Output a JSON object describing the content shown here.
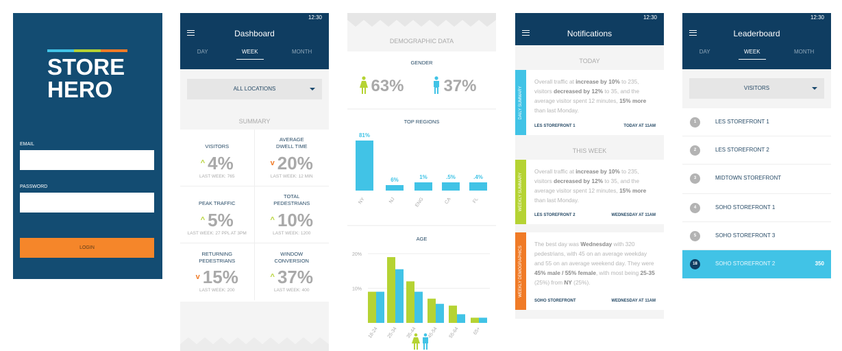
{
  "colors": {
    "navy": "#0f3d61",
    "blue": "#41c3e6",
    "green": "#b5d333",
    "orange": "#f07b27"
  },
  "status_time": "12:30",
  "login": {
    "logo_line1": "STORE",
    "logo_line2": "HERO",
    "email_label": "EMAIL",
    "password_label": "PASSWORD",
    "email_value": "",
    "password_value": "",
    "login_button": "LOGIN"
  },
  "dashboard": {
    "title": "Dashboard",
    "tabs": [
      "DAY",
      "WEEK",
      "MONTH"
    ],
    "active_tab": "WEEK",
    "location": "ALL LOCATIONS",
    "section": "SUMMARY",
    "metrics": [
      {
        "label": "VISITORS",
        "trend": "up",
        "value": "4%",
        "sub": "LAST WEEK: 765"
      },
      {
        "label": "AVERAGE DWELL TIME",
        "trend": "down",
        "value": "20%",
        "sub": "LAST WEEK: 12 MIN"
      },
      {
        "label": "PEAK TRAFFIC",
        "trend": "up",
        "value": "5%",
        "sub": "LAST WEEK: 27 PPL AT 3PM"
      },
      {
        "label": "TOTAL PEDESTRIANS",
        "trend": "up",
        "value": "10%",
        "sub": "LAST WEEK: 1200"
      },
      {
        "label": "RETURNING PEDESTRIANS",
        "trend": "down",
        "value": "15%",
        "sub": "LAST WEEK: 200"
      },
      {
        "label": "WINDOW CONVERSION",
        "trend": "up",
        "value": "37%",
        "sub": "LAST WEEK: 400"
      }
    ]
  },
  "demographics": {
    "title": "DEMOGRAPHIC DATA",
    "gender_title": "GENDER",
    "female": "63%",
    "male": "37%",
    "regions_title": "TOP REGIONS",
    "age_title": "AGE"
  },
  "chart_data": [
    {
      "type": "bar",
      "title": "TOP REGIONS",
      "categories": [
        "NY",
        "NJ",
        "ENG",
        "CA",
        "FL"
      ],
      "labels": [
        "81%",
        "6%",
        "1%",
        ".5%",
        ".4%"
      ],
      "values": [
        81,
        6,
        1,
        0.5,
        0.4
      ]
    },
    {
      "type": "bar",
      "title": "AGE",
      "categories": [
        "18-24",
        "25-34",
        "35-44",
        "45-54",
        "55-64",
        "65+"
      ],
      "yticks": [
        "20%",
        "10%"
      ],
      "ylim": [
        0,
        20
      ],
      "series": [
        {
          "name": "female",
          "values": [
            9,
            19,
            12,
            7,
            5,
            1.5
          ]
        },
        {
          "name": "male",
          "values": [
            9,
            15.5,
            9,
            5.5,
            2.5,
            1.5
          ]
        }
      ]
    }
  ],
  "notifications": {
    "title": "Notifications",
    "today": "TODAY",
    "this_week": "THIS WEEK",
    "items": [
      {
        "tag": "DAILY SUMMARY",
        "segments": [
          [
            "Overall traffic at ",
            0
          ],
          [
            "increase by 10%",
            1
          ],
          [
            " to 235, visitors ",
            0
          ],
          [
            "decreased by 12%",
            1
          ],
          [
            " to 35, and the average visitor spent 12 minutes, ",
            0
          ],
          [
            "15% more",
            1
          ],
          [
            " than last Monday.",
            0
          ]
        ],
        "store": "LES STOREFRONT 1",
        "time": "TODAY AT 11AM"
      },
      {
        "tag": "WEEKLY SUMMARY",
        "segments": [
          [
            "Overall traffic at ",
            0
          ],
          [
            "increase by 10%",
            1
          ],
          [
            " to 235, visitors ",
            0
          ],
          [
            "decreased by 12%",
            1
          ],
          [
            " to 35, and the average visitor spent 12 minutes, ",
            0
          ],
          [
            "15% more",
            1
          ],
          [
            " than last Monday.",
            0
          ]
        ],
        "store": "LES STOREFRONT 2",
        "time": "WEDNESDAY AT 11AM"
      },
      {
        "tag": "WEEKLY DEMOGRAPHICS",
        "segments": [
          [
            "The best day was ",
            0
          ],
          [
            "Wednesday",
            1
          ],
          [
            " with 320 pedestrians, with 45 on an average weekday and 55 on an average weekend day. They were ",
            0
          ],
          [
            "45% male / 55% female",
            1
          ],
          [
            ", with most being ",
            0
          ],
          [
            "25-35",
            1
          ],
          [
            " (25%) from ",
            0
          ],
          [
            "NY",
            1
          ],
          [
            " (25%).",
            0
          ]
        ],
        "store": "SOHO STOREFRONT",
        "time": "WEDNESDAY AT 11AM"
      }
    ]
  },
  "leaderboard": {
    "title": "Leaderboard",
    "tabs": [
      "DAY",
      "WEEK",
      "MONTH"
    ],
    "metric": "VISITORS",
    "rows": [
      {
        "rank": "1",
        "name": "LES STOREFRONT 1"
      },
      {
        "rank": "2",
        "name": "LES STOREFRONT 2"
      },
      {
        "rank": "3",
        "name": "MIDTOWN STOREFRONT"
      },
      {
        "rank": "4",
        "name": "SOHO STOREFRONT 1"
      },
      {
        "rank": "5",
        "name": "SOHO STOREFRONT 3"
      }
    ],
    "current": {
      "rank": "18",
      "name": "SOHO STOREFRONT 2",
      "value": "350"
    }
  }
}
